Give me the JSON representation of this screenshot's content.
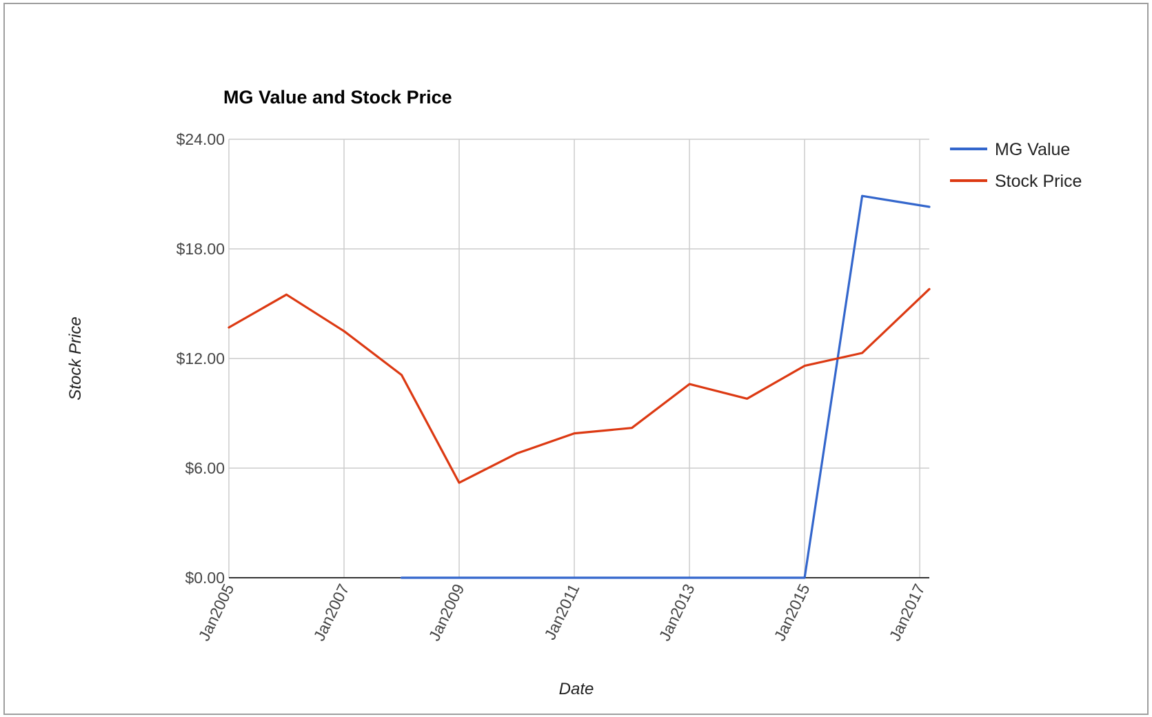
{
  "chart_data": {
    "type": "line",
    "title": "MG Value and Stock Price",
    "xlabel": "Date",
    "ylabel": "Stock Price",
    "x_ticks": [
      "Jan2005",
      "Jan2007",
      "Jan2009",
      "Jan2011",
      "Jan2013",
      "Jan2015",
      "Jan2017"
    ],
    "y_ticks": [
      "$0.00",
      "$6.00",
      "$12.00",
      "$18.00",
      "$24.00"
    ],
    "ylim": [
      0,
      24
    ],
    "xlim": [
      "2005-01",
      "2017-03"
    ],
    "grid": true,
    "legend": "right",
    "series": [
      {
        "name": "MG Value",
        "color": "#3366cc",
        "points": [
          {
            "x": "2008-01",
            "y": 0
          },
          {
            "x": "2009-01",
            "y": 0
          },
          {
            "x": "2010-01",
            "y": 0
          },
          {
            "x": "2011-01",
            "y": 0
          },
          {
            "x": "2012-01",
            "y": 0
          },
          {
            "x": "2013-01",
            "y": 0
          },
          {
            "x": "2014-01",
            "y": 0
          },
          {
            "x": "2015-01",
            "y": 0
          },
          {
            "x": "2016-01",
            "y": 20.9
          },
          {
            "x": "2017-03",
            "y": 20.3
          }
        ]
      },
      {
        "name": "Stock Price",
        "color": "#dc3912",
        "points": [
          {
            "x": "2005-01",
            "y": 13.7
          },
          {
            "x": "2006-01",
            "y": 15.5
          },
          {
            "x": "2007-01",
            "y": 13.5
          },
          {
            "x": "2008-01",
            "y": 11.1
          },
          {
            "x": "2009-01",
            "y": 5.2
          },
          {
            "x": "2010-01",
            "y": 6.8
          },
          {
            "x": "2011-01",
            "y": 7.9
          },
          {
            "x": "2012-01",
            "y": 8.2
          },
          {
            "x": "2013-01",
            "y": 10.6
          },
          {
            "x": "2014-01",
            "y": 9.8
          },
          {
            "x": "2015-01",
            "y": 11.6
          },
          {
            "x": "2016-01",
            "y": 12.3
          },
          {
            "x": "2017-03",
            "y": 15.8
          }
        ]
      }
    ]
  }
}
